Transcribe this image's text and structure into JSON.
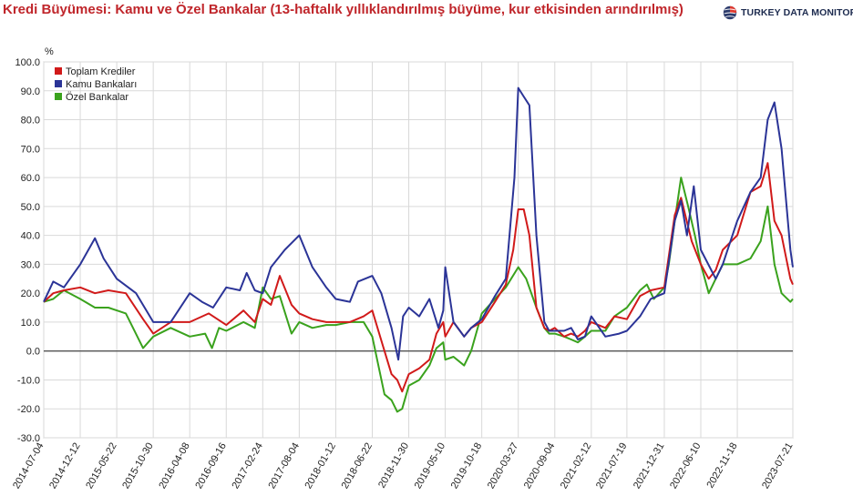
{
  "title": "Kredi Büyümesi: Kamu ve Özel Bankalar (13-haftalık yıllıklandırılmış büyüme, kur etkisinden arındırılmış)",
  "brand": "TURKEY DATA MONITOR",
  "colors": {
    "title": "#c0262b",
    "toplam": "#d11a1a",
    "kamu": "#2b3497",
    "ozel": "#3aa21d",
    "grid": "#d9d9d9",
    "zero": "#555555"
  },
  "chart_data": {
    "type": "line",
    "ylabel": "%",
    "ylim": [
      -30,
      100
    ],
    "yticks": [
      "100.0",
      "90.0",
      "80.0",
      "70.0",
      "60.0",
      "50.0",
      "40.0",
      "30.0",
      "20.0",
      "10.0",
      "0.0",
      "-10.0",
      "-20.0",
      "-30.0"
    ],
    "xlim": [
      "2014-07-04",
      "2023-07-21"
    ],
    "xticks": [
      "2014-07-04",
      "2014-12-12",
      "2015-05-22",
      "2015-10-30",
      "2016-04-08",
      "2016-09-16",
      "2017-02-24",
      "2017-08-04",
      "2018-01-12",
      "2018-06-22",
      "2018-11-30",
      "2019-05-10",
      "2019-10-18",
      "2020-03-27",
      "2020-09-04",
      "2021-02-12",
      "2021-07-19",
      "2021-12-31",
      "2022-06-10",
      "2022-11-18",
      "2023-07-21"
    ],
    "grid": true,
    "legend_position": "top-left",
    "series": [
      {
        "name": "Toplam Krediler",
        "color": "#d11a1a",
        "x": [
          "2014-07-04",
          "2014-08-15",
          "2014-10-01",
          "2014-12-12",
          "2015-02-15",
          "2015-04-15",
          "2015-07-01",
          "2015-09-15",
          "2015-10-30",
          "2016-01-15",
          "2016-04-08",
          "2016-07-01",
          "2016-09-16",
          "2016-12-01",
          "2017-01-20",
          "2017-02-24",
          "2017-04-01",
          "2017-05-10",
          "2017-07-01",
          "2017-08-04",
          "2017-10-01",
          "2017-12-01",
          "2018-01-12",
          "2018-03-15",
          "2018-05-15",
          "2018-06-22",
          "2018-08-15",
          "2018-09-15",
          "2018-10-10",
          "2018-11-01",
          "2018-11-30",
          "2019-01-15",
          "2019-03-01",
          "2019-04-01",
          "2019-05-01",
          "2019-05-10",
          "2019-06-15",
          "2019-08-01",
          "2019-09-01",
          "2019-10-18",
          "2019-12-15",
          "2020-02-01",
          "2020-03-05",
          "2020-03-27",
          "2020-04-20",
          "2020-05-15",
          "2020-06-15",
          "2020-07-20",
          "2020-08-10",
          "2020-09-04",
          "2020-10-15",
          "2020-11-15",
          "2020-12-15",
          "2021-01-15",
          "2021-02-12",
          "2021-04-15",
          "2021-05-25",
          "2021-07-19",
          "2021-09-15",
          "2021-11-01",
          "2021-12-31",
          "2022-02-15",
          "2022-03-15",
          "2022-05-01",
          "2022-06-10",
          "2022-07-15",
          "2022-08-15",
          "2022-09-15",
          "2022-11-18",
          "2023-01-15",
          "2023-03-01",
          "2023-04-01",
          "2023-05-01",
          "2023-06-01",
          "2023-07-10",
          "2023-07-21"
        ],
        "y": [
          17,
          20,
          21,
          22,
          20,
          21,
          20,
          11,
          6,
          10,
          10,
          13,
          9,
          14,
          10,
          18,
          16,
          26,
          16,
          13,
          11,
          10,
          10,
          10,
          12,
          14,
          0,
          -8,
          -10,
          -14,
          -8,
          -6,
          -3,
          6,
          10,
          5,
          10,
          5,
          8,
          10,
          17,
          23,
          35,
          49,
          49,
          40,
          15,
          8,
          7,
          8,
          5,
          6,
          5,
          7,
          10,
          8,
          12,
          11,
          19,
          21,
          22,
          47,
          53,
          38,
          30,
          25,
          28,
          35,
          40,
          55,
          57,
          65,
          45,
          40,
          25,
          23
        ]
      },
      {
        "name": "Kamu Bankaları",
        "color": "#2b3497",
        "x": [
          "2014-07-04",
          "2014-08-15",
          "2014-10-01",
          "2014-12-12",
          "2015-02-15",
          "2015-03-25",
          "2015-05-22",
          "2015-08-15",
          "2015-10-30",
          "2016-01-15",
          "2016-04-08",
          "2016-06-01",
          "2016-07-20",
          "2016-09-16",
          "2016-11-15",
          "2016-12-15",
          "2017-01-20",
          "2017-02-24",
          "2017-04-01",
          "2017-06-01",
          "2017-08-04",
          "2017-10-01",
          "2017-12-01",
          "2018-01-12",
          "2018-03-15",
          "2018-04-20",
          "2018-06-22",
          "2018-08-01",
          "2018-09-15",
          "2018-10-15",
          "2018-11-05",
          "2018-11-30",
          "2019-01-15",
          "2019-03-01",
          "2019-04-10",
          "2019-05-01",
          "2019-05-10",
          "2019-06-15",
          "2019-08-01",
          "2019-09-01",
          "2019-10-18",
          "2019-12-15",
          "2020-02-01",
          "2020-03-10",
          "2020-03-27",
          "2020-04-20",
          "2020-05-15",
          "2020-06-15",
          "2020-07-20",
          "2020-08-10",
          "2020-09-04",
          "2020-10-15",
          "2020-11-15",
          "2020-12-15",
          "2021-01-15",
          "2021-02-12",
          "2021-04-15",
          "2021-06-15",
          "2021-07-19",
          "2021-09-15",
          "2021-11-01",
          "2021-12-31",
          "2022-02-15",
          "2022-03-15",
          "2022-04-10",
          "2022-05-10",
          "2022-06-10",
          "2022-08-15",
          "2022-09-15",
          "2022-11-18",
          "2023-01-15",
          "2023-03-01",
          "2023-04-01",
          "2023-05-01",
          "2023-06-01",
          "2023-07-10",
          "2023-07-21"
        ],
        "y": [
          17,
          24,
          22,
          30,
          39,
          32,
          25,
          20,
          10,
          10,
          20,
          17,
          15,
          22,
          21,
          27,
          21,
          20,
          29,
          35,
          40,
          29,
          22,
          18,
          17,
          24,
          26,
          20,
          8,
          -3,
          12,
          15,
          12,
          18,
          8,
          14,
          29,
          10,
          5,
          8,
          11,
          19,
          25,
          60,
          91,
          88,
          85,
          40,
          10,
          7,
          7,
          7,
          8,
          4,
          5,
          12,
          5,
          6,
          7,
          12,
          18,
          20,
          45,
          52,
          40,
          57,
          35,
          25,
          30,
          45,
          55,
          60,
          80,
          86,
          70,
          35,
          29
        ]
      },
      {
        "name": "Özel Bankalar",
        "color": "#3aa21d",
        "x": [
          "2014-07-04",
          "2014-08-15",
          "2014-10-01",
          "2014-12-12",
          "2015-02-15",
          "2015-04-15",
          "2015-07-01",
          "2015-09-15",
          "2015-10-30",
          "2016-01-15",
          "2016-04-08",
          "2016-06-15",
          "2016-07-15",
          "2016-08-15",
          "2016-09-16",
          "2016-12-01",
          "2017-01-20",
          "2017-02-24",
          "2017-04-01",
          "2017-05-10",
          "2017-07-01",
          "2017-08-04",
          "2017-10-01",
          "2017-12-01",
          "2018-01-12",
          "2018-03-15",
          "2018-05-15",
          "2018-06-22",
          "2018-08-15",
          "2018-09-15",
          "2018-10-10",
          "2018-11-01",
          "2018-11-30",
          "2019-01-15",
          "2019-03-01",
          "2019-04-01",
          "2019-05-01",
          "2019-05-10",
          "2019-06-15",
          "2019-08-01",
          "2019-09-01",
          "2019-10-18",
          "2019-12-15",
          "2020-02-01",
          "2020-03-27",
          "2020-05-01",
          "2020-06-15",
          "2020-07-20",
          "2020-08-10",
          "2020-09-04",
          "2020-10-15",
          "2020-11-15",
          "2020-12-15",
          "2021-01-15",
          "2021-02-12",
          "2021-04-15",
          "2021-05-25",
          "2021-07-19",
          "2021-09-15",
          "2021-10-15",
          "2021-11-15",
          "2021-12-31",
          "2022-01-20",
          "2022-02-15",
          "2022-03-15",
          "2022-04-15",
          "2022-05-15",
          "2022-06-10",
          "2022-07-15",
          "2022-08-15",
          "2022-09-15",
          "2022-11-18",
          "2023-01-15",
          "2023-03-01",
          "2023-04-01",
          "2023-05-01",
          "2023-06-01",
          "2023-07-10",
          "2023-07-21"
        ],
        "y": [
          17,
          18,
          21,
          18,
          15,
          15,
          13,
          1,
          5,
          8,
          5,
          6,
          1,
          8,
          7,
          10,
          8,
          22,
          18,
          19,
          6,
          10,
          8,
          9,
          9,
          10,
          10,
          5,
          -15,
          -17,
          -21,
          -20,
          -12,
          -10,
          -5,
          1,
          3,
          -3,
          -2,
          -5,
          0,
          13,
          18,
          22,
          29,
          25,
          15,
          8,
          6,
          6,
          5,
          4,
          3,
          5,
          7,
          7,
          12,
          15,
          21,
          23,
          18,
          22,
          30,
          45,
          60,
          50,
          40,
          30,
          20,
          25,
          30,
          30,
          32,
          38,
          50,
          30,
          20,
          17,
          18
        ]
      }
    ]
  }
}
